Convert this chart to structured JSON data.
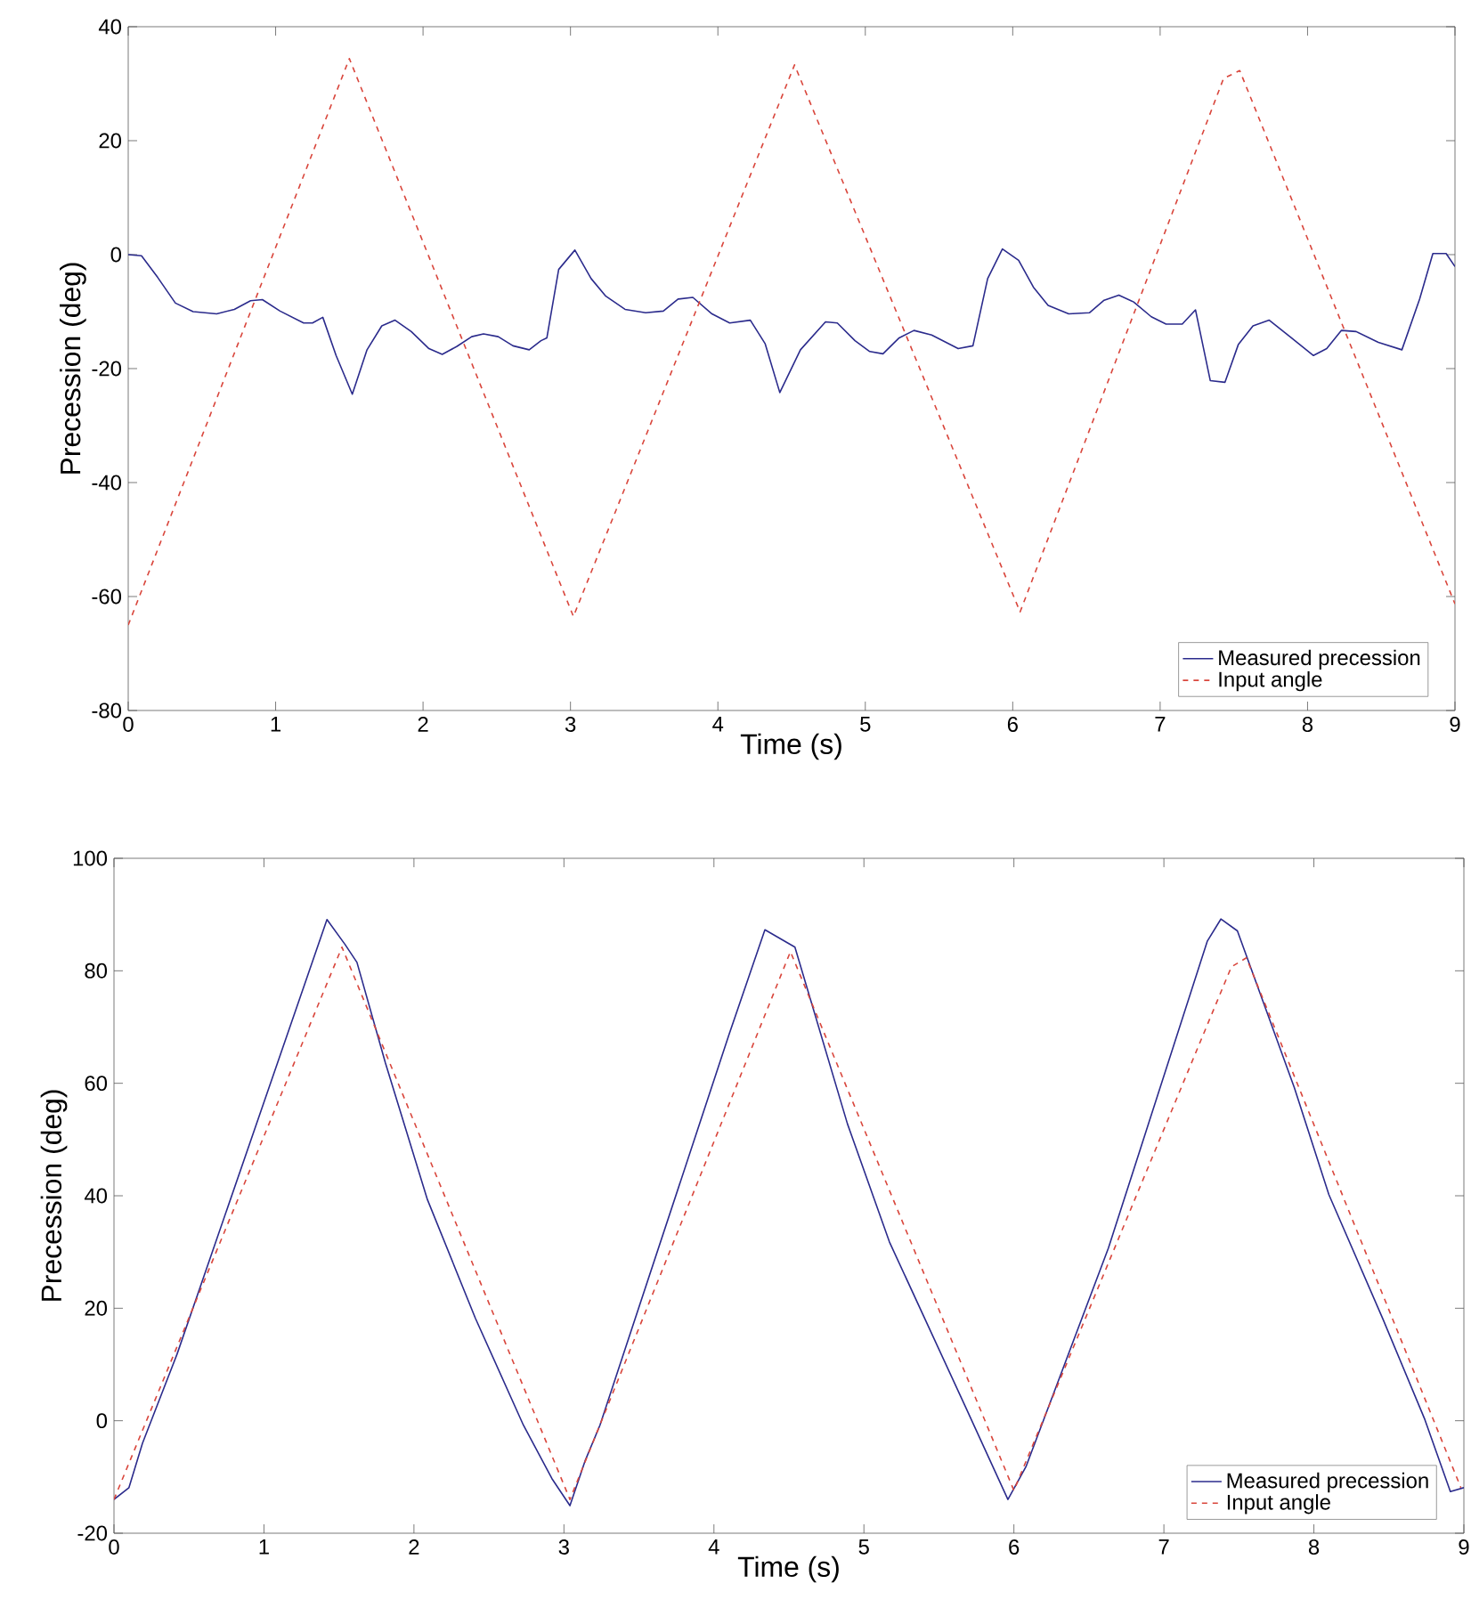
{
  "chart_data": [
    {
      "type": "line",
      "xlabel": "Time (s)",
      "ylabel": "Precession (deg)",
      "xlim": [
        0,
        9
      ],
      "ylim": [
        -80,
        40
      ],
      "xticks": [
        0,
        1,
        2,
        3,
        4,
        5,
        6,
        7,
        8,
        9
      ],
      "yticks": [
        -80,
        -60,
        -40,
        -20,
        0,
        20,
        40
      ],
      "legend": "bottom right",
      "series": [
        {
          "name": "Measured precession",
          "color": "#2b2b8c",
          "line_style": "solid",
          "x": [
            0,
            0.09,
            0.2,
            0.32,
            0.44,
            0.6,
            0.72,
            0.83,
            0.91,
            1.03,
            1.19,
            1.25,
            1.32,
            1.41,
            1.52,
            1.62,
            1.72,
            1.81,
            1.92,
            2.04,
            2.13,
            2.23,
            2.33,
            2.41,
            2.51,
            2.61,
            2.72,
            2.8,
            2.84,
            2.92,
            3.03,
            3.14,
            3.24,
            3.37,
            3.51,
            3.63,
            3.73,
            3.83,
            3.96,
            4.08,
            4.22,
            4.32,
            4.42,
            4.56,
            4.73,
            4.81,
            4.93,
            5.03,
            5.12,
            5.23,
            5.33,
            5.45,
            5.63,
            5.73,
            5.83,
            5.93,
            6.04,
            6.14,
            6.24,
            6.38,
            6.52,
            6.62,
            6.72,
            6.82,
            6.94,
            7.04,
            7.15,
            7.24,
            7.34,
            7.44,
            7.53,
            7.63,
            7.74,
            7.89,
            8.04,
            8.13,
            8.23,
            8.33,
            8.48,
            8.64,
            8.76,
            8.85,
            8.94,
            9
          ],
          "values": [
            0,
            -0.2,
            -4,
            -8.5,
            -10,
            -10.4,
            -9.6,
            -8.1,
            -7.9,
            -9.9,
            -12,
            -12,
            -11,
            -17.7,
            -24.5,
            -16.7,
            -12.5,
            -11.5,
            -13.5,
            -16.5,
            -17.5,
            -16.1,
            -14.4,
            -13.9,
            -14.4,
            -16,
            -16.7,
            -15.1,
            -14.6,
            -2.6,
            0.8,
            -4.2,
            -7.3,
            -9.6,
            -10.2,
            -9.9,
            -7.8,
            -7.5,
            -10.4,
            -12,
            -11.5,
            -15.6,
            -24.2,
            -16.7,
            -11.8,
            -12,
            -15.1,
            -17,
            -17.4,
            -14.6,
            -13.3,
            -14.1,
            -16.5,
            -16,
            -4.2,
            1,
            -1,
            -5.7,
            -8.9,
            -10.4,
            -10.2,
            -8,
            -7.1,
            -8.3,
            -10.9,
            -12.2,
            -12.2,
            -9.7,
            -22.1,
            -22.4,
            -15.8,
            -12.5,
            -11.5,
            -14.6,
            -17.7,
            -16.5,
            -13.3,
            -13.5,
            -15.4,
            -16.7,
            -7.8,
            0.2,
            0.2,
            -2.1
          ]
        },
        {
          "name": "Input angle",
          "color": "#d9463c",
          "line_style": "dashed",
          "x": [
            0,
            1.5,
            3.02,
            4.52,
            6.05,
            7.43,
            7.54,
            9
          ],
          "values": [
            -65,
            34.4,
            -63.5,
            33.3,
            -62.7,
            30.9,
            32.3,
            -61.3
          ]
        }
      ]
    },
    {
      "type": "line",
      "xlabel": "Time (s)",
      "ylabel": "Precession (deg)",
      "xlim": [
        0,
        9
      ],
      "ylim": [
        -20,
        100
      ],
      "xticks": [
        0,
        1,
        2,
        3,
        4,
        5,
        6,
        7,
        8,
        9
      ],
      "yticks": [
        -20,
        0,
        20,
        40,
        60,
        80,
        100
      ],
      "legend": "bottom right",
      "series": [
        {
          "name": "Measured precession",
          "color": "#2b2b8c",
          "line_style": "solid",
          "x": [
            0,
            0.1,
            0.19,
            0.42,
            1.42,
            1.54,
            1.62,
            1.81,
            2.09,
            2.41,
            2.73,
            2.92,
            3.04,
            3.14,
            3.24,
            4.1,
            4.34,
            4.54,
            4.89,
            5.17,
            5.68,
            5.96,
            6.08,
            6.63,
            7.29,
            7.38,
            7.49,
            7.87,
            8.1,
            8.46,
            8.74,
            8.91,
            9
          ],
          "values": [
            -14,
            -11.9,
            -4,
            11.8,
            89.1,
            84.7,
            81.5,
            63.6,
            39.3,
            18.2,
            -0.8,
            -10.3,
            -15.1,
            -7.2,
            -0.8,
            68.6,
            87.3,
            84.2,
            52.8,
            31.8,
            2.3,
            -14,
            -8.2,
            30.7,
            85.3,
            89.2,
            87.1,
            59.2,
            40.2,
            18.1,
            0.2,
            -12.6,
            -11.9
          ]
        },
        {
          "name": "Input angle",
          "color": "#d9463c",
          "line_style": "dashed",
          "x": [
            0,
            1.52,
            3.04,
            4.51,
            6,
            7.45,
            7.55,
            8.98
          ],
          "values": [
            -14,
            84.2,
            -14,
            83.4,
            -12.4,
            80.7,
            82.3,
            -11.9
          ]
        }
      ]
    }
  ]
}
